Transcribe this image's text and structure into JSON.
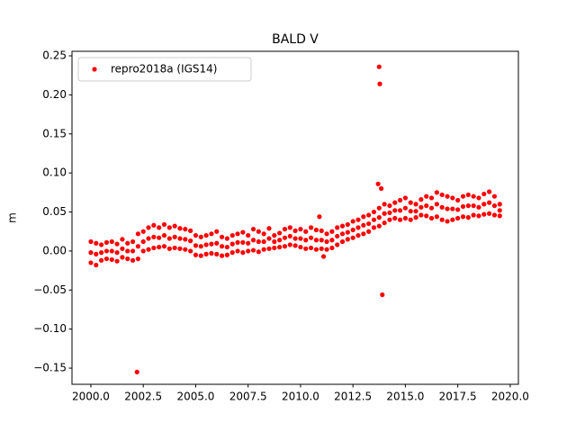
{
  "chart_data": {
    "type": "scatter",
    "title": "BALD V",
    "y_label": "m",
    "xlim": [
      1999.1,
      2020.39
    ],
    "ylim": [
      -0.1707,
      0.2558
    ],
    "xticks": [
      {
        "value": 2000,
        "label": "2000.0"
      },
      {
        "value": 2002.5,
        "label": "2002.5"
      },
      {
        "value": 2005,
        "label": "2005.0"
      },
      {
        "value": 2007.5,
        "label": "2007.5"
      },
      {
        "value": 2010,
        "label": "2010.0"
      },
      {
        "value": 2012.5,
        "label": "2012.5"
      },
      {
        "value": 2015,
        "label": "2015.0"
      },
      {
        "value": 2017.5,
        "label": "2017.5"
      },
      {
        "value": 2020,
        "label": "2020.0"
      }
    ],
    "yticks": [
      {
        "value": -0.15,
        "label": "−0.15"
      },
      {
        "value": -0.1,
        "label": "−0.10"
      },
      {
        "value": -0.05,
        "label": "−0.05"
      },
      {
        "value": 0,
        "label": "0.00"
      },
      {
        "value": 0.05,
        "label": "0.05"
      },
      {
        "value": 0.1,
        "label": "0.10"
      },
      {
        "value": 0.15,
        "label": "0.15"
      },
      {
        "value": 0.2,
        "label": "0.20"
      },
      {
        "value": 0.25,
        "label": "0.25"
      }
    ],
    "grid": false,
    "legend": "upper left",
    "series": [
      {
        "name": "repro2018a (IGS14)",
        "color": "#ff0000",
        "x": [
          2000.0,
          2000.0,
          2000.0,
          2000.25,
          2000.25,
          2000.25,
          2000.5,
          2000.5,
          2000.5,
          2000.75,
          2000.75,
          2000.75,
          2001.0,
          2001.0,
          2001.0,
          2001.25,
          2001.25,
          2001.25,
          2001.5,
          2001.5,
          2001.5,
          2001.75,
          2001.75,
          2001.75,
          2002.0,
          2002.0,
          2002.0,
          2002.25,
          2002.25,
          2002.25,
          2002.5,
          2002.5,
          2002.5,
          2002.75,
          2002.75,
          2002.75,
          2003.0,
          2003.0,
          2003.0,
          2003.25,
          2003.25,
          2003.25,
          2003.5,
          2003.5,
          2003.5,
          2003.75,
          2003.75,
          2003.75,
          2004.0,
          2004.0,
          2004.0,
          2004.25,
          2004.25,
          2004.25,
          2004.5,
          2004.5,
          2004.5,
          2004.75,
          2004.75,
          2004.75,
          2005.0,
          2005.0,
          2005.0,
          2005.25,
          2005.25,
          2005.25,
          2005.5,
          2005.5,
          2005.5,
          2005.75,
          2005.75,
          2005.75,
          2006.0,
          2006.0,
          2006.0,
          2006.25,
          2006.25,
          2006.25,
          2006.5,
          2006.5,
          2006.5,
          2006.75,
          2006.75,
          2006.75,
          2007.0,
          2007.0,
          2007.0,
          2007.25,
          2007.25,
          2007.25,
          2007.5,
          2007.5,
          2007.5,
          2007.75,
          2007.75,
          2007.75,
          2008.0,
          2008.0,
          2008.0,
          2008.25,
          2008.25,
          2008.25,
          2008.5,
          2008.5,
          2008.5,
          2008.75,
          2008.75,
          2008.75,
          2009.0,
          2009.0,
          2009.0,
          2009.25,
          2009.25,
          2009.25,
          2009.5,
          2009.5,
          2009.5,
          2009.75,
          2009.75,
          2009.75,
          2010.0,
          2010.0,
          2010.0,
          2010.25,
          2010.25,
          2010.25,
          2010.5,
          2010.5,
          2010.5,
          2010.75,
          2010.75,
          2010.75,
          2011.0,
          2011.0,
          2011.0,
          2011.25,
          2011.25,
          2011.25,
          2011.5,
          2011.5,
          2011.5,
          2011.75,
          2011.75,
          2011.75,
          2012.0,
          2012.0,
          2012.0,
          2012.25,
          2012.25,
          2012.25,
          2012.5,
          2012.5,
          2012.5,
          2012.75,
          2012.75,
          2012.75,
          2013.0,
          2013.0,
          2013.0,
          2013.25,
          2013.25,
          2013.25,
          2013.5,
          2013.5,
          2013.5,
          2013.75,
          2013.75,
          2013.75,
          2014.0,
          2014.0,
          2014.0,
          2014.25,
          2014.25,
          2014.25,
          2014.5,
          2014.5,
          2014.5,
          2014.75,
          2014.75,
          2014.75,
          2015.0,
          2015.0,
          2015.0,
          2015.25,
          2015.25,
          2015.25,
          2015.5,
          2015.5,
          2015.5,
          2015.75,
          2015.75,
          2015.75,
          2016.0,
          2016.0,
          2016.0,
          2016.25,
          2016.25,
          2016.25,
          2016.5,
          2016.5,
          2016.5,
          2016.75,
          2016.75,
          2016.75,
          2017.0,
          2017.0,
          2017.0,
          2017.25,
          2017.25,
          2017.25,
          2017.5,
          2017.5,
          2017.5,
          2017.75,
          2017.75,
          2017.75,
          2018.0,
          2018.0,
          2018.0,
          2018.25,
          2018.25,
          2018.25,
          2018.5,
          2018.5,
          2018.5,
          2018.75,
          2018.75,
          2018.75,
          2019.0,
          2019.0,
          2019.0,
          2019.25,
          2019.25,
          2019.25,
          2019.5,
          2019.5,
          2019.5,
          2002.2,
          2013.75,
          2013.78,
          2013.9,
          2013.7,
          2013.85,
          2010.9,
          2011.1
        ],
        "values": [
          0.012,
          -0.002,
          -0.015,
          0.01,
          -0.004,
          -0.018,
          0.008,
          -0.002,
          -0.012,
          0.011,
          0.0,
          -0.01,
          0.012,
          0.0,
          -0.011,
          0.009,
          -0.002,
          -0.013,
          0.015,
          0.003,
          -0.008,
          0.01,
          0.0,
          -0.01,
          0.012,
          0.0,
          -0.012,
          0.022,
          0.006,
          -0.01,
          0.025,
          0.012,
          0.0,
          0.03,
          0.016,
          0.002,
          0.033,
          0.018,
          0.004,
          0.03,
          0.017,
          0.005,
          0.034,
          0.02,
          0.006,
          0.03,
          0.016,
          0.003,
          0.032,
          0.018,
          0.004,
          0.029,
          0.016,
          0.003,
          0.028,
          0.015,
          0.002,
          0.026,
          0.013,
          0.0,
          0.02,
          0.007,
          -0.005,
          0.018,
          0.006,
          -0.006,
          0.02,
          0.008,
          -0.004,
          0.022,
          0.009,
          -0.003,
          0.025,
          0.01,
          -0.004,
          0.018,
          0.006,
          -0.006,
          0.016,
          0.005,
          -0.005,
          0.02,
          0.009,
          -0.002,
          0.022,
          0.011,
          0.0,
          0.024,
          0.011,
          -0.002,
          0.02,
          0.01,
          0.0,
          0.028,
          0.014,
          0.001,
          0.025,
          0.012,
          -0.001,
          0.022,
          0.012,
          0.002,
          0.029,
          0.016,
          0.003,
          0.02,
          0.012,
          0.004,
          0.023,
          0.014,
          0.005,
          0.028,
          0.017,
          0.006,
          0.03,
          0.019,
          0.008,
          0.026,
          0.016,
          0.007,
          0.028,
          0.016,
          0.005,
          0.025,
          0.014,
          0.003,
          0.03,
          0.017,
          0.004,
          0.027,
          0.014,
          0.002,
          0.026,
          0.014,
          0.003,
          0.022,
          0.012,
          0.002,
          0.025,
          0.014,
          0.004,
          0.03,
          0.019,
          0.008,
          0.032,
          0.022,
          0.012,
          0.034,
          0.024,
          0.015,
          0.038,
          0.027,
          0.017,
          0.04,
          0.03,
          0.02,
          0.044,
          0.033,
          0.022,
          0.046,
          0.035,
          0.025,
          0.05,
          0.04,
          0.03,
          0.055,
          0.043,
          0.032,
          0.06,
          0.048,
          0.036,
          0.058,
          0.049,
          0.04,
          0.062,
          0.052,
          0.042,
          0.065,
          0.052,
          0.04,
          0.068,
          0.055,
          0.042,
          0.062,
          0.051,
          0.04,
          0.06,
          0.051,
          0.043,
          0.066,
          0.056,
          0.046,
          0.07,
          0.058,
          0.045,
          0.068,
          0.055,
          0.042,
          0.075,
          0.06,
          0.044,
          0.072,
          0.056,
          0.04,
          0.07,
          0.054,
          0.038,
          0.068,
          0.054,
          0.04,
          0.065,
          0.053,
          0.042,
          0.07,
          0.057,
          0.044,
          0.072,
          0.058,
          0.043,
          0.07,
          0.058,
          0.046,
          0.068,
          0.056,
          0.045,
          0.073,
          0.06,
          0.047,
          0.076,
          0.062,
          0.048,
          0.07,
          0.058,
          0.046,
          0.06,
          0.052,
          0.045,
          -0.155,
          0.236,
          0.214,
          -0.056,
          0.086,
          0.08,
          0.044,
          -0.007
        ]
      }
    ]
  }
}
